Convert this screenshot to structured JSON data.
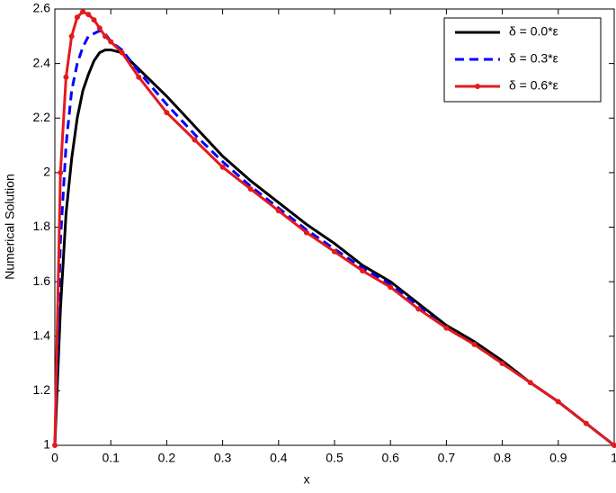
{
  "chart_data": {
    "type": "line",
    "xlabel": "x",
    "ylabel": "Numerical Solution",
    "x": [
      0,
      0.01,
      0.02,
      0.03,
      0.04,
      0.05,
      0.06,
      0.07,
      0.08,
      0.09,
      0.1,
      0.12,
      0.15,
      0.2,
      0.25,
      0.3,
      0.35,
      0.4,
      0.45,
      0.5,
      0.55,
      0.6,
      0.65,
      0.7,
      0.75,
      0.8,
      0.85,
      0.9,
      0.95,
      1
    ],
    "series": [
      {
        "name": "δ = 0.0*ε",
        "color": "#000000",
        "dashed": false,
        "markers": false,
        "values": [
          1,
          1.5,
          1.85,
          2.05,
          2.2,
          2.3,
          2.36,
          2.41,
          2.44,
          2.45,
          2.45,
          2.44,
          2.38,
          2.28,
          2.17,
          2.06,
          1.97,
          1.89,
          1.81,
          1.74,
          1.66,
          1.6,
          1.52,
          1.44,
          1.38,
          1.31,
          1.23,
          1.16,
          1.08,
          1
        ]
      },
      {
        "name": "δ = 0.3*ε",
        "color": "#0000ff",
        "dashed": true,
        "markers": false,
        "values": [
          1,
          1.75,
          2.1,
          2.3,
          2.4,
          2.46,
          2.5,
          2.51,
          2.52,
          2.51,
          2.48,
          2.45,
          2.37,
          2.25,
          2.14,
          2.04,
          1.95,
          1.87,
          1.79,
          1.72,
          1.65,
          1.59,
          1.51,
          1.43,
          1.37,
          1.3,
          1.23,
          1.16,
          1.08,
          1
        ]
      },
      {
        "name": "δ = 0.6*ε",
        "color": "#e31a1c",
        "dashed": false,
        "markers": true,
        "values": [
          1,
          2.0,
          2.35,
          2.5,
          2.57,
          2.59,
          2.58,
          2.56,
          2.53,
          2.5,
          2.48,
          2.44,
          2.35,
          2.22,
          2.12,
          2.02,
          1.94,
          1.86,
          1.78,
          1.71,
          1.64,
          1.58,
          1.5,
          1.43,
          1.37,
          1.3,
          1.23,
          1.16,
          1.08,
          1
        ]
      }
    ],
    "xlim": [
      0,
      1
    ],
    "xticks": [
      0,
      0.1,
      0.2,
      0.3,
      0.4,
      0.5,
      0.6,
      0.7,
      0.8,
      0.9,
      1
    ],
    "ylim": [
      1,
      2.6
    ],
    "yticks": [
      1,
      1.2,
      1.4,
      1.6,
      1.8,
      2,
      2.2,
      2.4,
      2.6
    ],
    "legend": "top-right"
  }
}
